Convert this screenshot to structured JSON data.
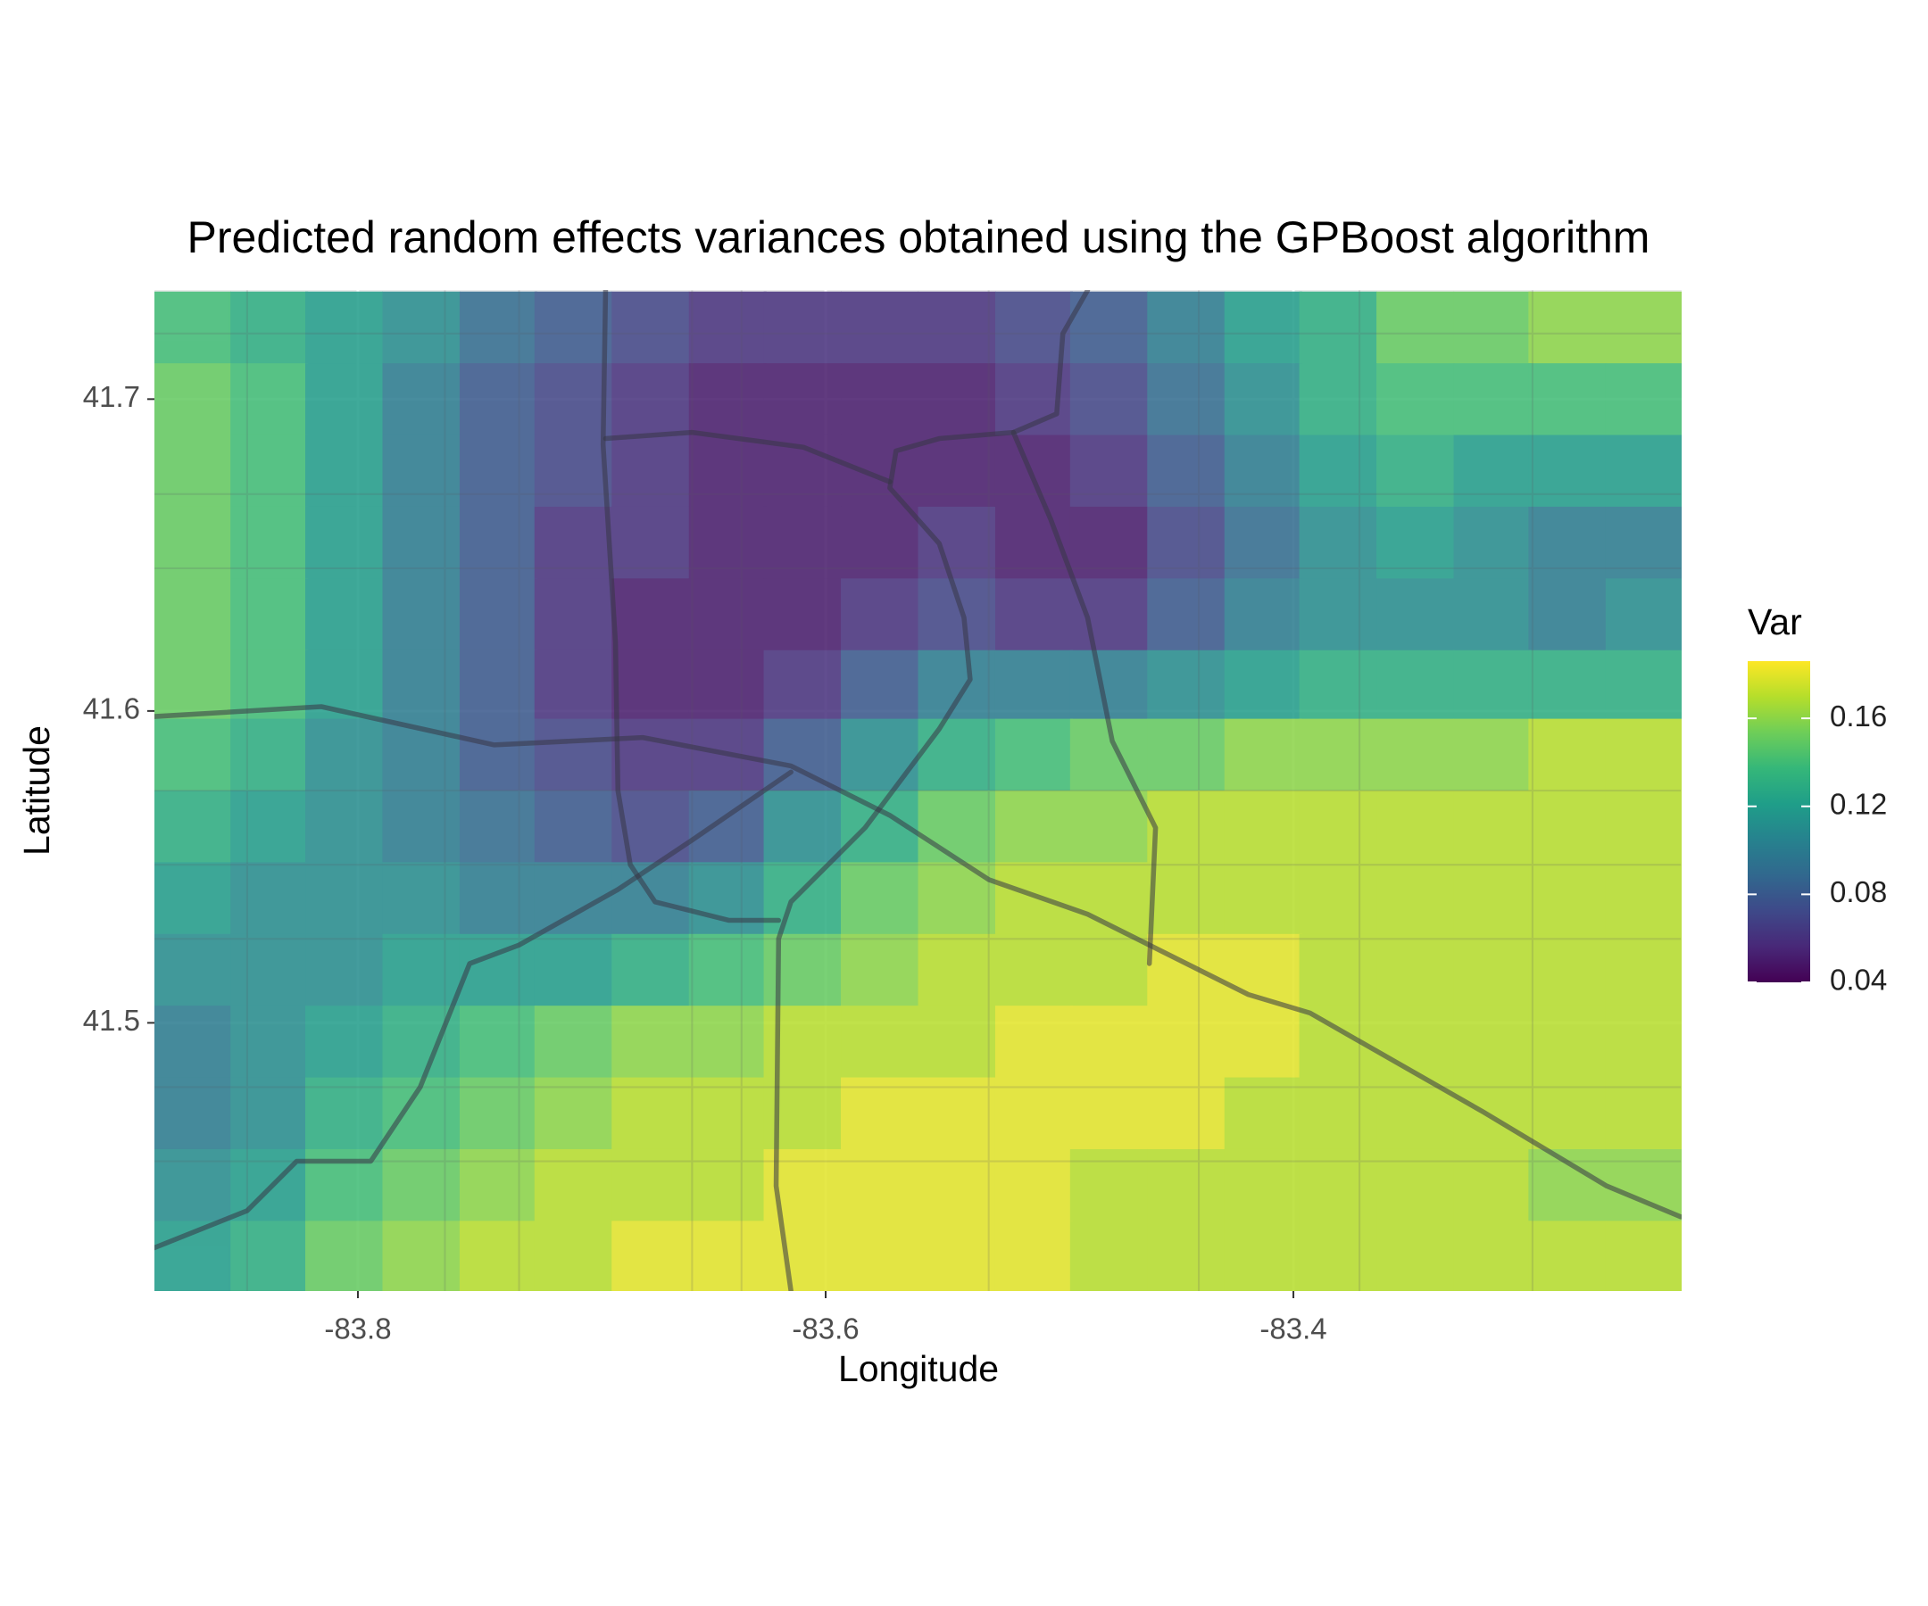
{
  "chart_data": {
    "type": "heatmap",
    "title": "Predicted random effects variances obtained using the GPBoost algorithm",
    "xlabel": "Longitude",
    "ylabel": "Latitude",
    "legend_title": "Var",
    "colorscale": "viridis",
    "zlim": [
      0.04,
      0.186
    ],
    "colorbar_ticks": [
      0.04,
      0.08,
      0.12,
      0.16
    ],
    "xlim": [
      -83.887,
      -83.234
    ],
    "ylim": [
      41.414,
      41.735
    ],
    "xticks": [
      -83.8,
      -83.6,
      -83.4
    ],
    "yticks": [
      41.5,
      41.6,
      41.7
    ],
    "grid": true,
    "x": [
      -83.871,
      -83.838,
      -83.806,
      -83.773,
      -83.74,
      -83.708,
      -83.675,
      -83.642,
      -83.61,
      -83.577,
      -83.544,
      -83.511,
      -83.479,
      -83.446,
      -83.413,
      -83.381,
      -83.348,
      -83.315,
      -83.283,
      -83.25
    ],
    "y": [
      41.723,
      41.7,
      41.677,
      41.654,
      41.631,
      41.608,
      41.586,
      41.563,
      41.54,
      41.517,
      41.494,
      41.471,
      41.448,
      41.425
    ],
    "z": [
      [
        0.14,
        0.13,
        0.12,
        0.11,
        0.09,
        0.08,
        0.07,
        0.06,
        0.06,
        0.06,
        0.06,
        0.07,
        0.08,
        0.1,
        0.12,
        0.13,
        0.15,
        0.15,
        0.16,
        0.16
      ],
      [
        0.15,
        0.14,
        0.12,
        0.1,
        0.08,
        0.07,
        0.06,
        0.05,
        0.05,
        0.05,
        0.05,
        0.06,
        0.07,
        0.09,
        0.11,
        0.13,
        0.14,
        0.14,
        0.14,
        0.14
      ],
      [
        0.15,
        0.14,
        0.12,
        0.1,
        0.08,
        0.07,
        0.06,
        0.05,
        0.05,
        0.05,
        0.05,
        0.05,
        0.06,
        0.08,
        0.1,
        0.12,
        0.13,
        0.12,
        0.12,
        0.12
      ],
      [
        0.15,
        0.14,
        0.12,
        0.1,
        0.08,
        0.06,
        0.06,
        0.05,
        0.05,
        0.05,
        0.06,
        0.05,
        0.05,
        0.07,
        0.09,
        0.11,
        0.12,
        0.11,
        0.1,
        0.1
      ],
      [
        0.15,
        0.14,
        0.12,
        0.1,
        0.08,
        0.06,
        0.05,
        0.05,
        0.05,
        0.06,
        0.07,
        0.06,
        0.06,
        0.08,
        0.1,
        0.11,
        0.11,
        0.11,
        0.1,
        0.11
      ],
      [
        0.15,
        0.14,
        0.12,
        0.1,
        0.08,
        0.06,
        0.05,
        0.05,
        0.06,
        0.08,
        0.1,
        0.1,
        0.1,
        0.11,
        0.12,
        0.13,
        0.13,
        0.13,
        0.13,
        0.13
      ],
      [
        0.14,
        0.13,
        0.11,
        0.1,
        0.08,
        0.07,
        0.06,
        0.06,
        0.08,
        0.11,
        0.13,
        0.14,
        0.15,
        0.15,
        0.16,
        0.16,
        0.16,
        0.16,
        0.17,
        0.17
      ],
      [
        0.13,
        0.12,
        0.11,
        0.1,
        0.09,
        0.08,
        0.07,
        0.08,
        0.11,
        0.13,
        0.15,
        0.16,
        0.16,
        0.17,
        0.17,
        0.17,
        0.17,
        0.17,
        0.17,
        0.17
      ],
      [
        0.12,
        0.11,
        0.11,
        0.11,
        0.1,
        0.1,
        0.1,
        0.11,
        0.13,
        0.15,
        0.16,
        0.17,
        0.17,
        0.17,
        0.17,
        0.17,
        0.17,
        0.17,
        0.17,
        0.17
      ],
      [
        0.11,
        0.11,
        0.11,
        0.12,
        0.12,
        0.12,
        0.13,
        0.14,
        0.15,
        0.16,
        0.17,
        0.17,
        0.17,
        0.18,
        0.18,
        0.17,
        0.17,
        0.17,
        0.17,
        0.17
      ],
      [
        0.1,
        0.11,
        0.12,
        0.13,
        0.14,
        0.15,
        0.16,
        0.16,
        0.17,
        0.17,
        0.17,
        0.18,
        0.18,
        0.18,
        0.18,
        0.17,
        0.17,
        0.17,
        0.17,
        0.17
      ],
      [
        0.1,
        0.11,
        0.13,
        0.14,
        0.15,
        0.16,
        0.17,
        0.17,
        0.17,
        0.18,
        0.18,
        0.18,
        0.18,
        0.18,
        0.17,
        0.17,
        0.17,
        0.17,
        0.17,
        0.17
      ],
      [
        0.11,
        0.12,
        0.14,
        0.15,
        0.16,
        0.17,
        0.17,
        0.17,
        0.18,
        0.18,
        0.18,
        0.18,
        0.17,
        0.17,
        0.17,
        0.17,
        0.17,
        0.17,
        0.16,
        0.16
      ],
      [
        0.12,
        0.13,
        0.15,
        0.16,
        0.17,
        0.17,
        0.18,
        0.18,
        0.18,
        0.18,
        0.18,
        0.18,
        0.17,
        0.17,
        0.17,
        0.17,
        0.17,
        0.17,
        0.17,
        0.17
      ]
    ]
  }
}
